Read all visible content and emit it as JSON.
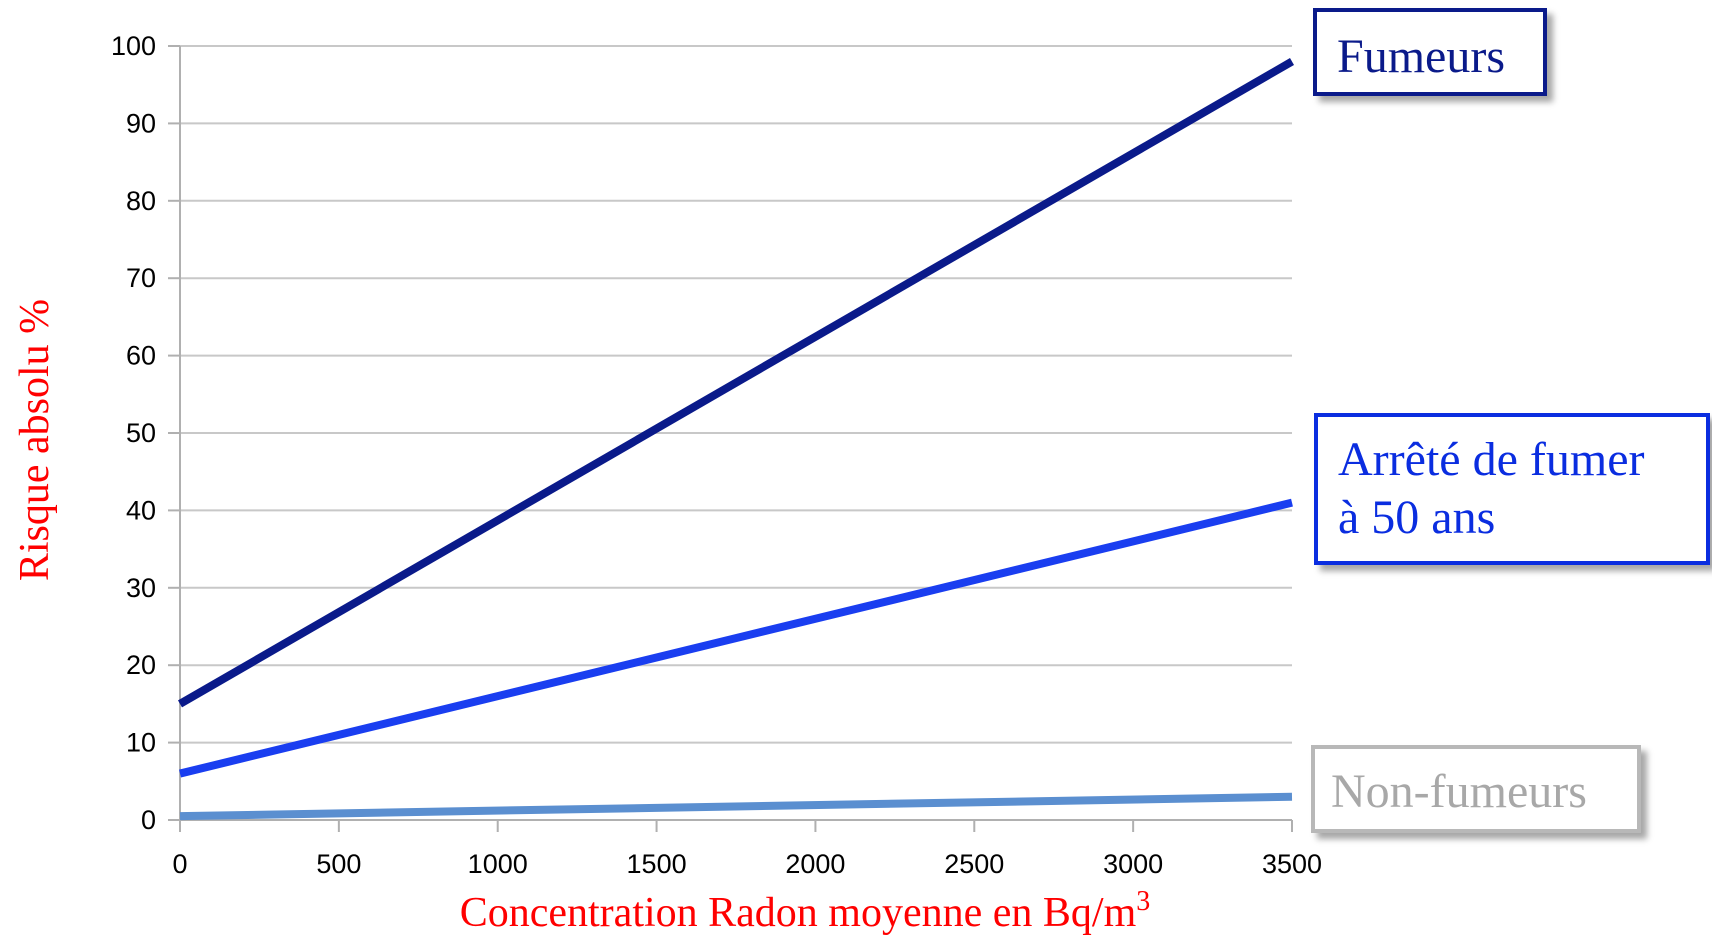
{
  "chart_data": {
    "type": "line",
    "xlabel": "Concentration Radon moyenne en Bq/m",
    "xlabel_sup": "3",
    "ylabel": "Risque absolu %",
    "x_ticks": [
      "0",
      "500",
      "1000",
      "1500",
      "2000",
      "2500",
      "3000",
      "3500"
    ],
    "y_ticks": [
      "0",
      "10",
      "20",
      "30",
      "40",
      "50",
      "60",
      "70",
      "80",
      "90",
      "100"
    ],
    "xlim": [
      0,
      3500
    ],
    "ylim": [
      0,
      100
    ],
    "grid": true,
    "x": [
      0,
      3500
    ],
    "series": [
      {
        "name": "Fumeurs",
        "values": [
          15,
          98
        ],
        "color": "#0a1a8a"
      },
      {
        "name": "Arrêté de fumer à 50 ans",
        "values": [
          6,
          41
        ],
        "color": "#1a3ef0"
      },
      {
        "name": "Non-fumeurs",
        "values": [
          0.5,
          3
        ],
        "color": "#5b8fd0"
      }
    ]
  },
  "legend": {
    "fumeurs": "Fumeurs",
    "arrete_line1": "Arrêté de fumer",
    "arrete_line2": "à 50 ans",
    "non_fumeurs": "Non-fumeurs"
  }
}
